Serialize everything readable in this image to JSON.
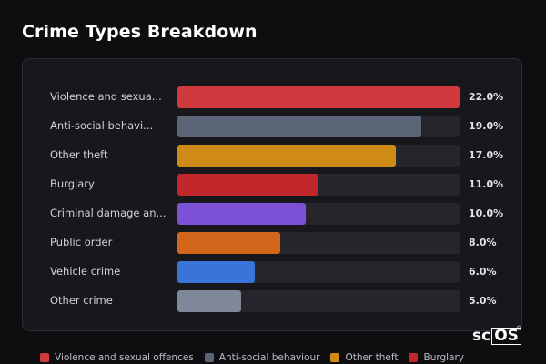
{
  "title": "Crime Types Breakdown",
  "chart_data": {
    "type": "bar",
    "orientation": "horizontal",
    "categories": [
      "Violence and sexua...",
      "Anti-social behavi...",
      "Other theft",
      "Burglary",
      "Criminal damage an...",
      "Public order",
      "Vehicle crime",
      "Other crime"
    ],
    "values": [
      22.0,
      19.0,
      17.0,
      11.0,
      10.0,
      8.0,
      6.0,
      5.0
    ],
    "value_labels": [
      "22.0%",
      "19.0%",
      "17.0%",
      "11.0%",
      "10.0%",
      "8.0%",
      "6.0%",
      "5.0%"
    ],
    "colors": [
      "#d0393d",
      "#5a6577",
      "#d08b16",
      "#c1262a",
      "#7b52d6",
      "#d4661c",
      "#3a74d9",
      "#7e8898"
    ],
    "unit": "%",
    "grid": false,
    "legend_position": "bottom"
  },
  "legend": [
    {
      "label": "Violence and sexual offences",
      "color": "#d0393d"
    },
    {
      "label": "Anti-social behaviour",
      "color": "#5a6577"
    },
    {
      "label": "Other theft",
      "color": "#d08b16"
    },
    {
      "label": "Burglary",
      "color": "#c1262a"
    }
  ],
  "watermark": {
    "text": "scOS",
    "mark": "®"
  }
}
